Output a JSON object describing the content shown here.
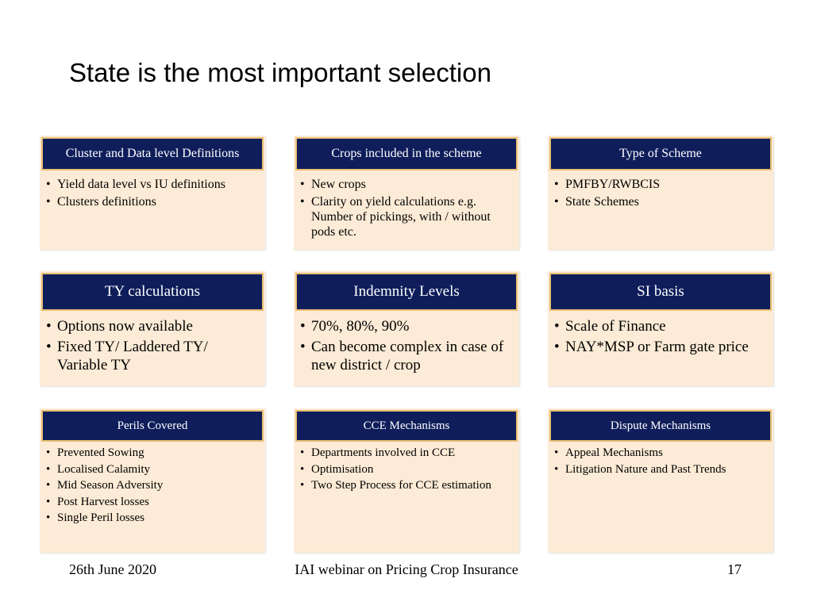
{
  "slide": {
    "title": "State is the most important selection"
  },
  "cards": [
    {
      "title": "Cluster and Data level Definitions",
      "items": [
        "Yield data level vs IU definitions",
        " Clusters definitions"
      ]
    },
    {
      "title": "Crops included in the scheme",
      "items": [
        "New crops",
        "Clarity on yield calculations e.g. Number of pickings, with / without pods etc."
      ]
    },
    {
      "title": "Type of Scheme",
      "items": [
        "PMFBY/RWBCIS",
        "State Schemes"
      ]
    },
    {
      "title": "TY calculations",
      "items": [
        "Options now available",
        "Fixed TY/ Laddered TY/ Variable TY"
      ]
    },
    {
      "title": "Indemnity Levels",
      "items": [
        " 70%, 80%, 90%",
        " Can become complex in case of new district / crop"
      ]
    },
    {
      "title": "SI basis",
      "items": [
        "Scale of Finance",
        "NAY*MSP or Farm gate price"
      ]
    },
    {
      "title": "Perils Covered",
      "items": [
        "Prevented Sowing",
        "Localised Calamity",
        "Mid Season Adversity",
        "Post Harvest losses",
        "Single Peril losses"
      ]
    },
    {
      "title": "CCE Mechanisms",
      "items": [
        "Departments involved in CCE",
        "Optimisation",
        "Two Step Process for CCE estimation"
      ]
    },
    {
      "title": "Dispute Mechanisms",
      "items": [
        "Appeal Mechanisms",
        "Litigation Nature and Past Trends"
      ]
    }
  ],
  "footer": {
    "date": "26th June 2020",
    "title": "IAI webinar on Pricing Crop Insurance",
    "page": "17"
  },
  "colors": {
    "header_bg": "#0f1e5b",
    "header_border": "#e8bf72",
    "card_bg": "#fcebd6"
  }
}
